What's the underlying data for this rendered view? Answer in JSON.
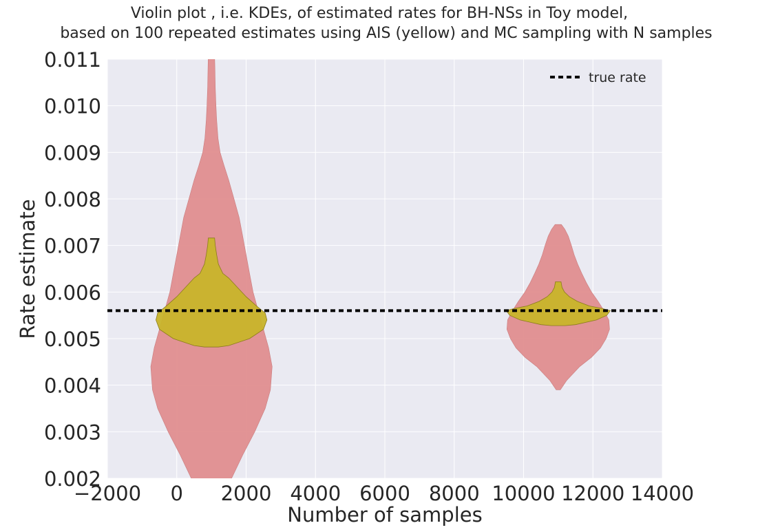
{
  "chart_data": {
    "type": "violin",
    "title_line1": "Violin plot , i.e. KDEs, of estimated rates for BH-NSs  in Toy model,",
    "title_line2": "based on 100 repeated estimates using AIS (yellow) and MC sampling with N samples",
    "xlabel": "Number of samples",
    "ylabel": "Rate estimate",
    "xlim": [
      -2000,
      14000
    ],
    "ylim": [
      0.002,
      0.011
    ],
    "xticks": [
      -2000,
      0,
      2000,
      4000,
      6000,
      8000,
      10000,
      12000,
      14000
    ],
    "xtick_labels": [
      "−2000",
      "0",
      "2000",
      "4000",
      "6000",
      "8000",
      "10000",
      "12000",
      "14000"
    ],
    "yticks": [
      0.002,
      0.003,
      0.004,
      0.005,
      0.006,
      0.007,
      0.008,
      0.009,
      0.01,
      0.011
    ],
    "ytick_labels": [
      "0.002",
      "0.003",
      "0.004",
      "0.005",
      "0.006",
      "0.007",
      "0.008",
      "0.009",
      "0.010",
      "0.011"
    ],
    "grid": true,
    "legend_position": "top-right",
    "true_rate": 0.0056,
    "legend": {
      "true_rate_label": "true rate"
    },
    "colors": {
      "mc": "#e08e8f",
      "ais": "#c8b42a",
      "background": "#eaeaf2",
      "grid": "#ffffff",
      "true_rate_line": "#000000"
    },
    "series": [
      {
        "kind": "mc",
        "position": 1000,
        "profile": [
          [
            0.00195,
            550
          ],
          [
            0.0025,
            900
          ],
          [
            0.003,
            1250
          ],
          [
            0.0035,
            1550
          ],
          [
            0.0039,
            1700
          ],
          [
            0.0044,
            1750
          ],
          [
            0.0048,
            1650
          ],
          [
            0.0052,
            1500
          ],
          [
            0.0056,
            1350
          ],
          [
            0.006,
            1200
          ],
          [
            0.0064,
            1100
          ],
          [
            0.0068,
            1000
          ],
          [
            0.0072,
            900
          ],
          [
            0.0076,
            800
          ],
          [
            0.008,
            650
          ],
          [
            0.0084,
            500
          ],
          [
            0.0087,
            370
          ],
          [
            0.009,
            250
          ],
          [
            0.0093,
            190
          ],
          [
            0.0097,
            150
          ],
          [
            0.01,
            130
          ],
          [
            0.0104,
            110
          ],
          [
            0.0108,
            100
          ],
          [
            0.0111,
            90
          ]
        ]
      },
      {
        "kind": "ais",
        "position": 1000,
        "profile": [
          [
            0.00482,
            200
          ],
          [
            0.00485,
            500
          ],
          [
            0.005,
            1100
          ],
          [
            0.0052,
            1500
          ],
          [
            0.0054,
            1600
          ],
          [
            0.00555,
            1550
          ],
          [
            0.0057,
            1300
          ],
          [
            0.0059,
            1000
          ],
          [
            0.0061,
            750
          ],
          [
            0.0063,
            500
          ],
          [
            0.0064,
            330
          ],
          [
            0.0066,
            200
          ],
          [
            0.0068,
            150
          ],
          [
            0.007,
            110
          ],
          [
            0.00716,
            90
          ]
        ]
      },
      {
        "kind": "mc",
        "position": 11000,
        "profile": [
          [
            0.0039,
            60
          ],
          [
            0.0041,
            240
          ],
          [
            0.0044,
            620
          ],
          [
            0.0046,
            960
          ],
          [
            0.0048,
            1220
          ],
          [
            0.005,
            1380
          ],
          [
            0.0052,
            1480
          ],
          [
            0.0054,
            1460
          ],
          [
            0.0056,
            1320
          ],
          [
            0.0058,
            1150
          ],
          [
            0.006,
            960
          ],
          [
            0.0062,
            810
          ],
          [
            0.0064,
            680
          ],
          [
            0.0066,
            560
          ],
          [
            0.0068,
            460
          ],
          [
            0.007,
            380
          ],
          [
            0.0072,
            290
          ],
          [
            0.00735,
            190
          ],
          [
            0.00745,
            90
          ]
        ]
      },
      {
        "kind": "ais",
        "position": 11000,
        "profile": [
          [
            0.00528,
            200
          ],
          [
            0.0053,
            500
          ],
          [
            0.0054,
            1100
          ],
          [
            0.0055,
            1400
          ],
          [
            0.0056,
            1500
          ],
          [
            0.00565,
            1250
          ],
          [
            0.0057,
            900
          ],
          [
            0.0058,
            550
          ],
          [
            0.0059,
            320
          ],
          [
            0.006,
            180
          ],
          [
            0.0061,
            110
          ],
          [
            0.00622,
            80
          ]
        ]
      }
    ]
  }
}
